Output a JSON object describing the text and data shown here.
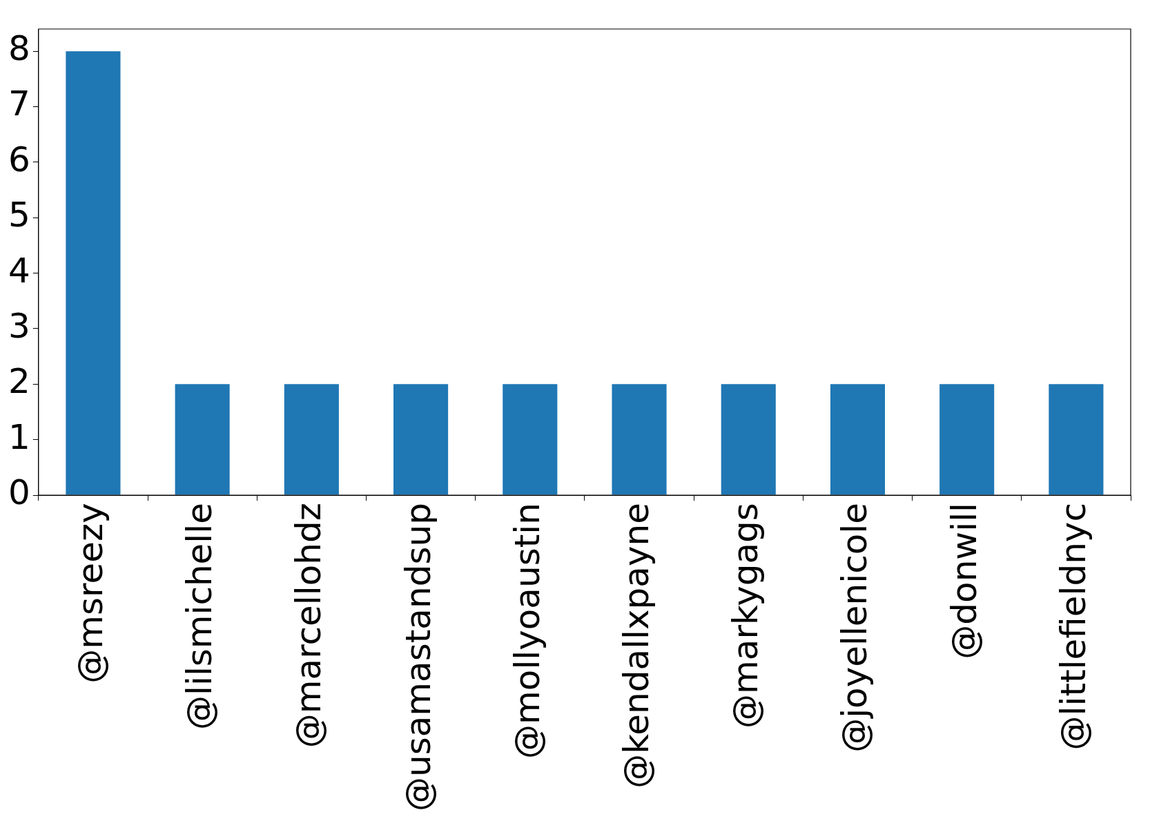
{
  "chart_data": {
    "type": "bar",
    "categories": [
      "@msreezy",
      "@lilsmichelle",
      "@marcellohdz",
      "@usamastandsup",
      "@mollyoaustin",
      "@kendallxpayne",
      "@markygags",
      "@joyellenicole",
      "@donwill",
      "@littlefieldnyc"
    ],
    "values": [
      8,
      2,
      2,
      2,
      2,
      2,
      2,
      2,
      2,
      2
    ],
    "color": "#1f77b4",
    "ylim": [
      0,
      8.4
    ],
    "yticks": [
      0,
      1,
      2,
      3,
      4,
      5,
      6,
      7,
      8
    ],
    "grid": false
  }
}
